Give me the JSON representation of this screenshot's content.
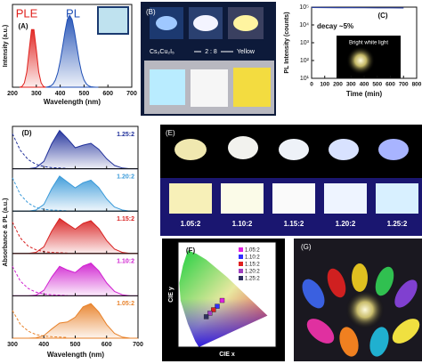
{
  "chart_data": [
    {
      "type": "area",
      "panel": "(A)",
      "xlabel": "Wavelength (nm)",
      "ylabel": "Intensity (a.u.)",
      "xlim": [
        200,
        700
      ],
      "xticks": [
        200,
        300,
        400,
        500,
        600,
        700
      ],
      "ylim": [
        0,
        1.15
      ],
      "series": [
        {
          "name": "PLE",
          "color": "#e0211d",
          "x": [
            230,
            240,
            250,
            260,
            270,
            280,
            290,
            300,
            310,
            320,
            330,
            340
          ],
          "values": [
            0,
            0.01,
            0.06,
            0.21,
            0.52,
            0.8,
            0.8,
            0.52,
            0.21,
            0.06,
            0.01,
            0
          ]
        },
        {
          "name": "PL",
          "color": "#1f4fb5",
          "x": [
            340,
            350,
            360,
            370,
            380,
            390,
            400,
            410,
            420,
            430,
            440,
            450,
            460,
            470,
            480,
            490,
            500,
            510,
            520,
            530,
            540,
            550,
            560
          ],
          "values": [
            0,
            0.006,
            0.017,
            0.044,
            0.1,
            0.2,
            0.36,
            0.56,
            0.77,
            0.94,
            1,
            0.94,
            0.77,
            0.56,
            0.36,
            0.2,
            0.1,
            0.044,
            0.017,
            0.006,
            0.002,
            0,
            0
          ]
        }
      ]
    },
    {
      "type": "line",
      "panel": "(C)",
      "xlabel": "Time (min)",
      "ylabel": "PL Intensity (counts)",
      "annotation": "decay ~5%",
      "inset_label": "Bright white light",
      "xlim": [
        0,
        800
      ],
      "xticks": [
        0,
        100,
        200,
        300,
        400,
        500,
        600,
        700,
        800
      ],
      "ylog": true,
      "ylim": [
        10,
        100000
      ],
      "yticks": [
        {
          "value": 10,
          "label": "10¹"
        },
        {
          "value": 100,
          "label": "10²"
        },
        {
          "value": 1000,
          "label": "10³"
        },
        {
          "value": 10000,
          "label": "10⁴"
        },
        {
          "value": 100000,
          "label": "10⁵"
        }
      ],
      "series": [
        {
          "color": "#2a3f9d",
          "x": [
            0,
            100,
            200,
            300,
            400,
            500,
            600,
            700
          ],
          "values": [
            95000,
            94300,
            93600,
            92900,
            92200,
            91500,
            90900,
            90250
          ]
        }
      ]
    },
    {
      "type": "stacked-area",
      "panel": "(D)",
      "xlabel": "Wavelength (nm)",
      "ylabel": "Absorbance & PL (a.u.)",
      "xlim": [
        300,
        700
      ],
      "xticks": [
        300,
        400,
        500,
        600,
        700
      ],
      "ylim": [
        0,
        1.15
      ],
      "x": [
        300,
        325,
        350,
        375,
        400,
        425,
        450,
        475,
        500,
        525,
        550,
        575,
        600,
        625,
        650,
        675,
        700
      ],
      "panels": [
        {
          "label": "1.25:2",
          "color": "#1f2f9a",
          "pl": [
            0,
            0,
            0,
            0.03,
            0.2,
            0.68,
            1.04,
            0.82,
            0.57,
            0.64,
            0.69,
            0.53,
            0.27,
            0.09,
            0.02,
            0,
            0
          ],
          "abs": [
            0.95,
            0.5,
            0.25,
            0.12,
            0.06,
            0.03,
            0.02,
            0.01,
            null,
            null,
            null,
            null,
            null,
            null,
            null,
            null,
            null
          ]
        },
        {
          "label": "1.20:2",
          "color": "#3a9ad9",
          "pl": [
            0,
            0,
            0,
            0.03,
            0.18,
            0.61,
            0.95,
            0.79,
            0.63,
            0.77,
            0.84,
            0.64,
            0.33,
            0.11,
            0.03,
            0,
            0
          ],
          "abs": [
            0.9,
            0.45,
            0.22,
            0.1,
            0.05,
            0.03,
            0.02,
            0.01,
            null,
            null,
            null,
            null,
            null,
            null,
            null,
            null,
            null
          ]
        },
        {
          "label": "1.15:2",
          "color": "#d82020",
          "pl": [
            0,
            0,
            0,
            0.03,
            0.18,
            0.61,
            0.95,
            0.8,
            0.66,
            0.82,
            0.89,
            0.68,
            0.35,
            0.12,
            0.03,
            0,
            0
          ],
          "abs": [
            0.85,
            0.42,
            0.2,
            0.1,
            0.05,
            0.03,
            0.02,
            0.01,
            null,
            null,
            null,
            null,
            null,
            null,
            null,
            null,
            null
          ]
        },
        {
          "label": "1.10:2",
          "color": "#d020d0",
          "pl": [
            0,
            0,
            0,
            0.02,
            0.15,
            0.51,
            0.8,
            0.7,
            0.63,
            0.81,
            0.89,
            0.68,
            0.35,
            0.12,
            0.03,
            0,
            0
          ],
          "abs": [
            0.8,
            0.4,
            0.2,
            0.1,
            0.05,
            0.03,
            0.02,
            0.01,
            null,
            null,
            null,
            null,
            null,
            null,
            null,
            null,
            null
          ]
        },
        {
          "label": "1.05:2",
          "color": "#e8822a",
          "pl": [
            0,
            0,
            0,
            0.01,
            0.07,
            0.25,
            0.41,
            0.44,
            0.57,
            0.85,
            0.94,
            0.71,
            0.37,
            0.13,
            0.03,
            0,
            0
          ],
          "abs": [
            0.75,
            0.38,
            0.19,
            0.1,
            0.06,
            0.04,
            0.03,
            0.02,
            null,
            null,
            null,
            null,
            null,
            null,
            null,
            null,
            null
          ]
        }
      ]
    },
    {
      "type": "scatter",
      "panel": "(F)",
      "xlabel": "CIE x",
      "ylabel": "CIE y",
      "xlim": [
        0,
        0.8
      ],
      "ylim": [
        0,
        0.9
      ],
      "series": [
        {
          "name": "1.05:2",
          "color": "#e020e0",
          "x": [
            0.36
          ],
          "values": [
            0.4
          ]
        },
        {
          "name": "1.10:2",
          "color": "#3030ff",
          "x": [
            0.32
          ],
          "values": [
            0.35
          ]
        },
        {
          "name": "1.15:2",
          "color": "#e02020",
          "x": [
            0.29
          ],
          "values": [
            0.32
          ]
        },
        {
          "name": "1.20:2",
          "color": "#a040c0",
          "x": [
            0.26
          ],
          "values": [
            0.29
          ]
        },
        {
          "name": "1.25:2",
          "color": "#303060",
          "x": [
            0.23
          ],
          "values": [
            0.26
          ]
        }
      ]
    }
  ],
  "photos": {
    "B": {
      "panel": "(B)",
      "compound": "Cs₃Cu₂I₅",
      "ratio": "2 : 8",
      "yellow": "Yellow"
    },
    "E": {
      "panel": "(E)",
      "labels": [
        "1.05:2",
        "1.10:2",
        "1.15:2",
        "1.20:2",
        "1.25:2"
      ]
    },
    "G": {
      "panel": "(G)"
    }
  }
}
